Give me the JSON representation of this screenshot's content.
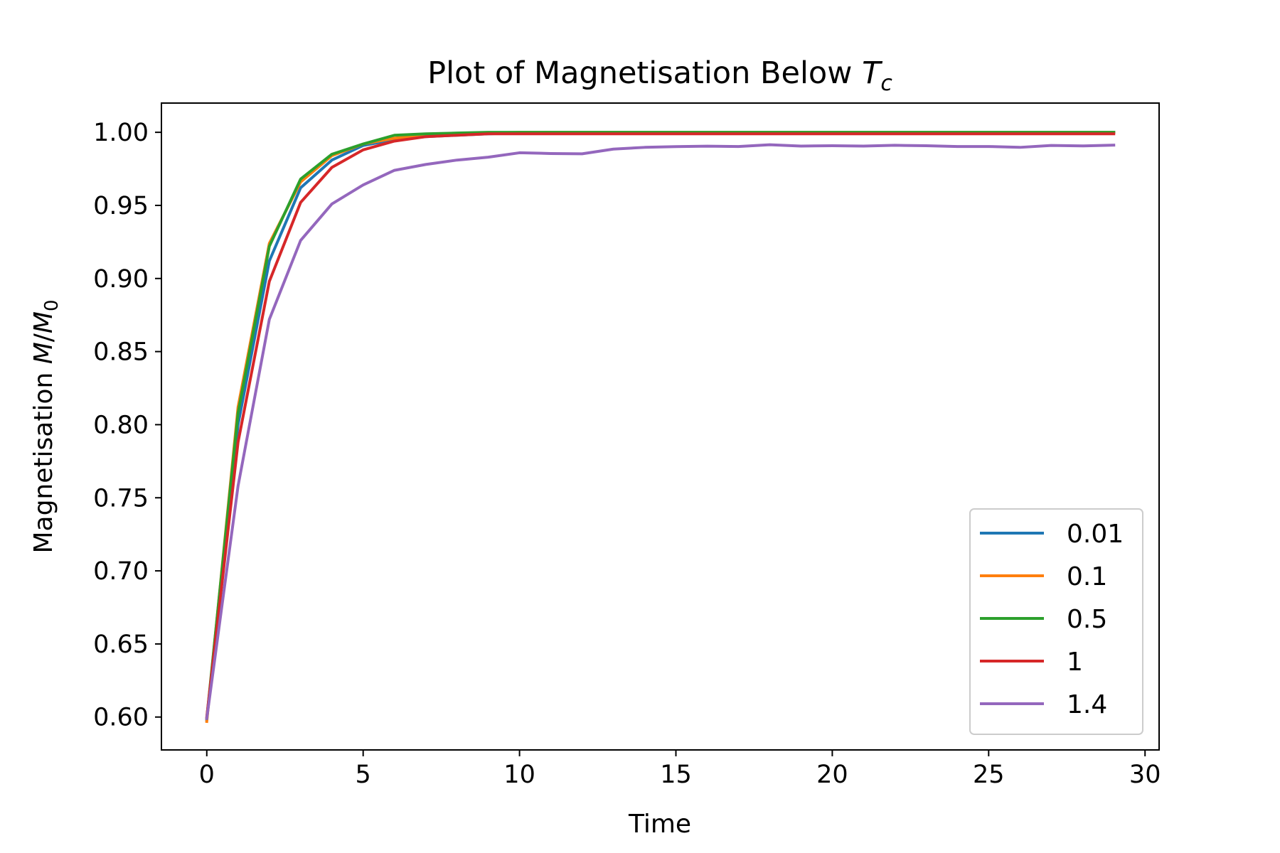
{
  "chart_data": {
    "type": "line",
    "title": "Plot of Magnetisation Below",
    "title_math": {
      "base": "T",
      "sub": "c"
    },
    "xlabel": "Time",
    "ylabel": "Magnetisation",
    "ylabel_math": {
      "num": "M",
      "sep": "/",
      "den": "M",
      "den_sub": "0"
    },
    "xlim": [
      -1.45,
      30.45
    ],
    "ylim": [
      0.5775,
      1.02
    ],
    "xticks": [
      0,
      5,
      10,
      15,
      20,
      25,
      30
    ],
    "xtick_labels": [
      "0",
      "5",
      "10",
      "15",
      "20",
      "25",
      "30"
    ],
    "yticks": [
      0.6,
      0.65,
      0.7,
      0.75,
      0.8,
      0.85,
      0.9,
      0.95,
      1.0
    ],
    "ytick_labels": [
      "0.60",
      "0.65",
      "0.70",
      "0.75",
      "0.80",
      "0.85",
      "0.90",
      "0.95",
      "1.00"
    ],
    "grid": false,
    "legend_position": "lower-right",
    "x": [
      0,
      1,
      2,
      3,
      4,
      5,
      6,
      7,
      8,
      9,
      10,
      11,
      12,
      13,
      14,
      15,
      16,
      17,
      18,
      19,
      20,
      21,
      22,
      23,
      24,
      25,
      26,
      27,
      28,
      29
    ],
    "series": [
      {
        "name": "0.01",
        "color": "#1f77b4",
        "values": [
          0.598,
          0.8,
          0.912,
          0.962,
          0.981,
          0.991,
          0.995,
          0.997,
          0.998,
          0.999,
          0.9995,
          1.0,
          1.0,
          1.0,
          1.0,
          1.0,
          1.0,
          1.0,
          1.0,
          1.0,
          1.0,
          1.0,
          1.0,
          1.0,
          1.0,
          1.0,
          1.0,
          1.0,
          1.0,
          1.0
        ]
      },
      {
        "name": "0.1",
        "color": "#ff7f0e",
        "values": [
          0.597,
          0.812,
          0.924,
          0.966,
          0.984,
          0.992,
          0.996,
          0.998,
          0.999,
          0.9995,
          1.0,
          1.0,
          1.0,
          1.0,
          1.0,
          1.0,
          1.0,
          1.0,
          1.0,
          1.0,
          1.0,
          1.0,
          1.0,
          1.0,
          1.0,
          1.0,
          1.0,
          1.0,
          1.0,
          1.0
        ]
      },
      {
        "name": "0.5",
        "color": "#2ca02c",
        "values": [
          0.599,
          0.808,
          0.922,
          0.968,
          0.985,
          0.992,
          0.998,
          0.999,
          0.9995,
          1.0,
          1.0,
          1.0,
          1.0,
          1.0,
          1.0,
          1.0,
          1.0,
          1.0,
          1.0,
          1.0,
          1.0,
          1.0,
          1.0,
          1.0,
          1.0,
          1.0,
          1.0,
          1.0,
          1.0,
          1.0
        ]
      },
      {
        "name": "1",
        "color": "#d62728",
        "values": [
          0.6,
          0.788,
          0.898,
          0.952,
          0.976,
          0.988,
          0.994,
          0.997,
          0.998,
          0.999,
          0.999,
          0.999,
          0.999,
          0.999,
          0.999,
          0.999,
          0.999,
          0.999,
          0.999,
          0.999,
          0.999,
          0.999,
          0.999,
          0.999,
          0.999,
          0.999,
          0.999,
          0.999,
          0.999,
          0.999
        ]
      },
      {
        "name": "1.4",
        "color": "#9467bd",
        "values": [
          0.599,
          0.758,
          0.872,
          0.926,
          0.951,
          0.964,
          0.974,
          0.978,
          0.981,
          0.983,
          0.986,
          0.9855,
          0.9853,
          0.9885,
          0.9897,
          0.9902,
          0.9905,
          0.9903,
          0.9915,
          0.9906,
          0.9908,
          0.9906,
          0.9911,
          0.9908,
          0.9903,
          0.9903,
          0.9897,
          0.991,
          0.9907,
          0.9912
        ]
      }
    ]
  }
}
